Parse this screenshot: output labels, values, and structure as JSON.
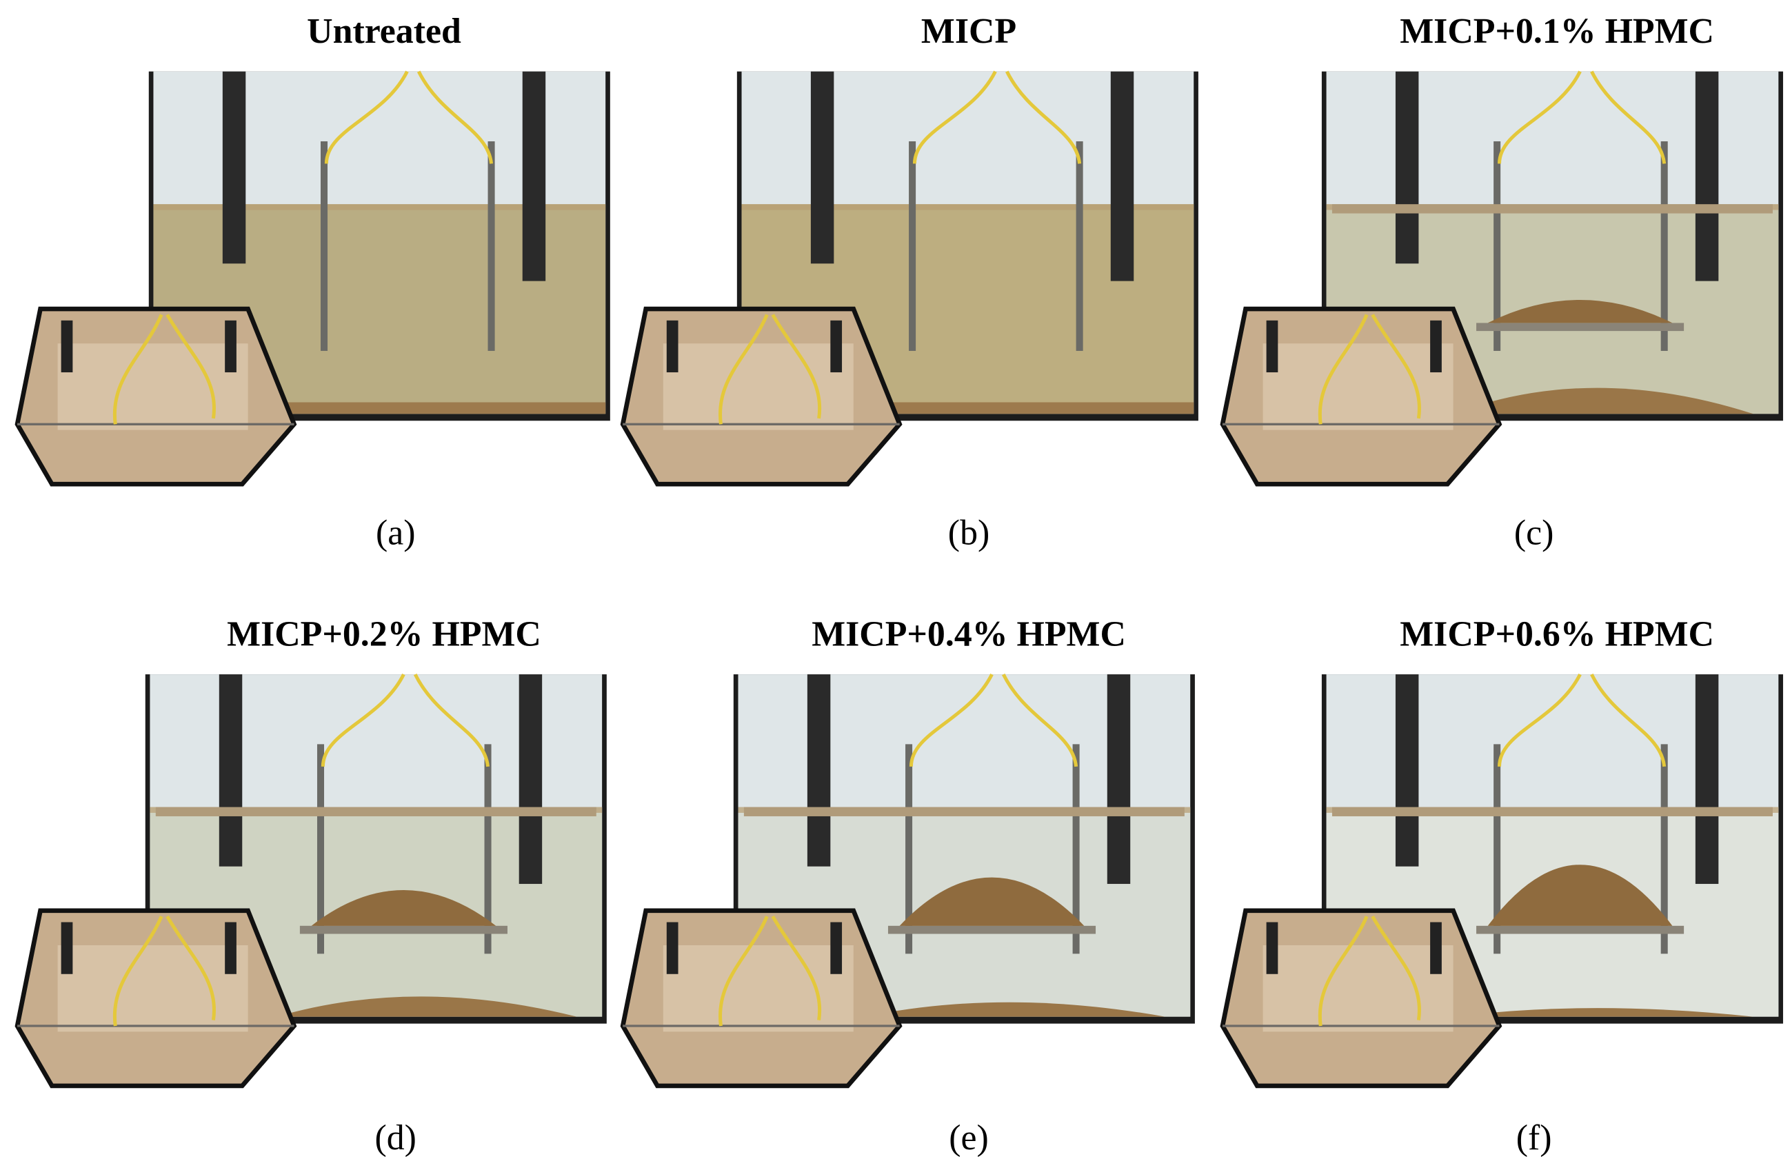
{
  "panels": [
    {
      "title": "Untreated",
      "label": "(a)"
    },
    {
      "title": "MICP",
      "label": "(b)"
    },
    {
      "title": "MICP+0.1% HPMC",
      "label": "(c)"
    },
    {
      "title": "MICP+0.2% HPMC",
      "label": "(d)"
    },
    {
      "title": "MICP+0.4% HPMC",
      "label": "(e)"
    },
    {
      "title": "MICP+0.6% HPMC",
      "label": "(f)"
    }
  ]
}
